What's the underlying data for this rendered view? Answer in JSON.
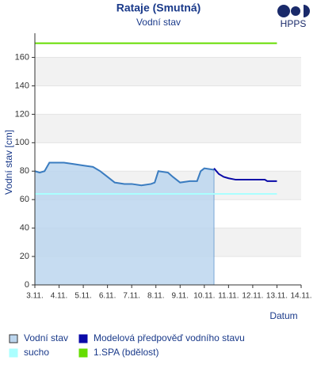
{
  "chart_data": {
    "type": "line",
    "title": "Rataje (Smutná)",
    "subtitle": "Vodní stav",
    "y_label": "Vodní stav [cm]",
    "x_label": "Datum",
    "xlim": [
      3,
      14
    ],
    "ylim": [
      0,
      177
    ],
    "xticks": [
      {
        "value": 3,
        "label": "3.11."
      },
      {
        "value": 4,
        "label": "4.11."
      },
      {
        "value": 5,
        "label": "5.11."
      },
      {
        "value": 6,
        "label": "6.11."
      },
      {
        "value": 7,
        "label": "7.11."
      },
      {
        "value": 8,
        "label": "8.11."
      },
      {
        "value": 9,
        "label": "9.11."
      },
      {
        "value": 10,
        "label": "10.11."
      },
      {
        "value": 11,
        "label": "11.11."
      },
      {
        "value": 12,
        "label": "12.11."
      },
      {
        "value": 13,
        "label": "13.11."
      },
      {
        "value": 14,
        "label": "14.11."
      }
    ],
    "yticks": [
      0,
      20,
      40,
      60,
      80,
      100,
      120,
      140,
      160
    ],
    "grid": true,
    "series": [
      {
        "name": "Vodní stav",
        "color": "#3a7cc0",
        "fill": "#bcd6ee",
        "style": "area",
        "x": [
          3,
          3.2,
          3.4,
          3.6,
          3.8,
          4.2,
          4.6,
          5.0,
          5.4,
          5.7,
          6.0,
          6.3,
          6.7,
          7.0,
          7.4,
          7.8,
          7.95,
          8.1,
          8.5,
          8.7,
          9.0,
          9.4,
          9.7,
          9.85,
          10.0,
          10.4
        ],
        "values": [
          80,
          79,
          80,
          86,
          86,
          86,
          85,
          84,
          83,
          80,
          76,
          72,
          71,
          71,
          70,
          71,
          72,
          80,
          79,
          76,
          72,
          73,
          73,
          80,
          82,
          81
        ]
      },
      {
        "name": "Modelová předpověď vodního stavu",
        "color": "#0a0aa8",
        "style": "line",
        "x": [
          10.4,
          10.6,
          10.8,
          11.0,
          11.3,
          11.6,
          12.5,
          12.6,
          13.0
        ],
        "values": [
          82,
          78,
          76,
          75,
          74,
          74,
          74,
          73,
          73
        ]
      },
      {
        "name": "sucho",
        "color": "#aaffff",
        "style": "line",
        "x": [
          3,
          13
        ],
        "values": [
          64,
          64
        ]
      },
      {
        "name": "1.SPA (bdělost)",
        "color": "#66dd00",
        "style": "line",
        "x": [
          3,
          13
        ],
        "values": [
          170,
          170
        ]
      }
    ]
  },
  "logo": {
    "text": "HPPS"
  }
}
